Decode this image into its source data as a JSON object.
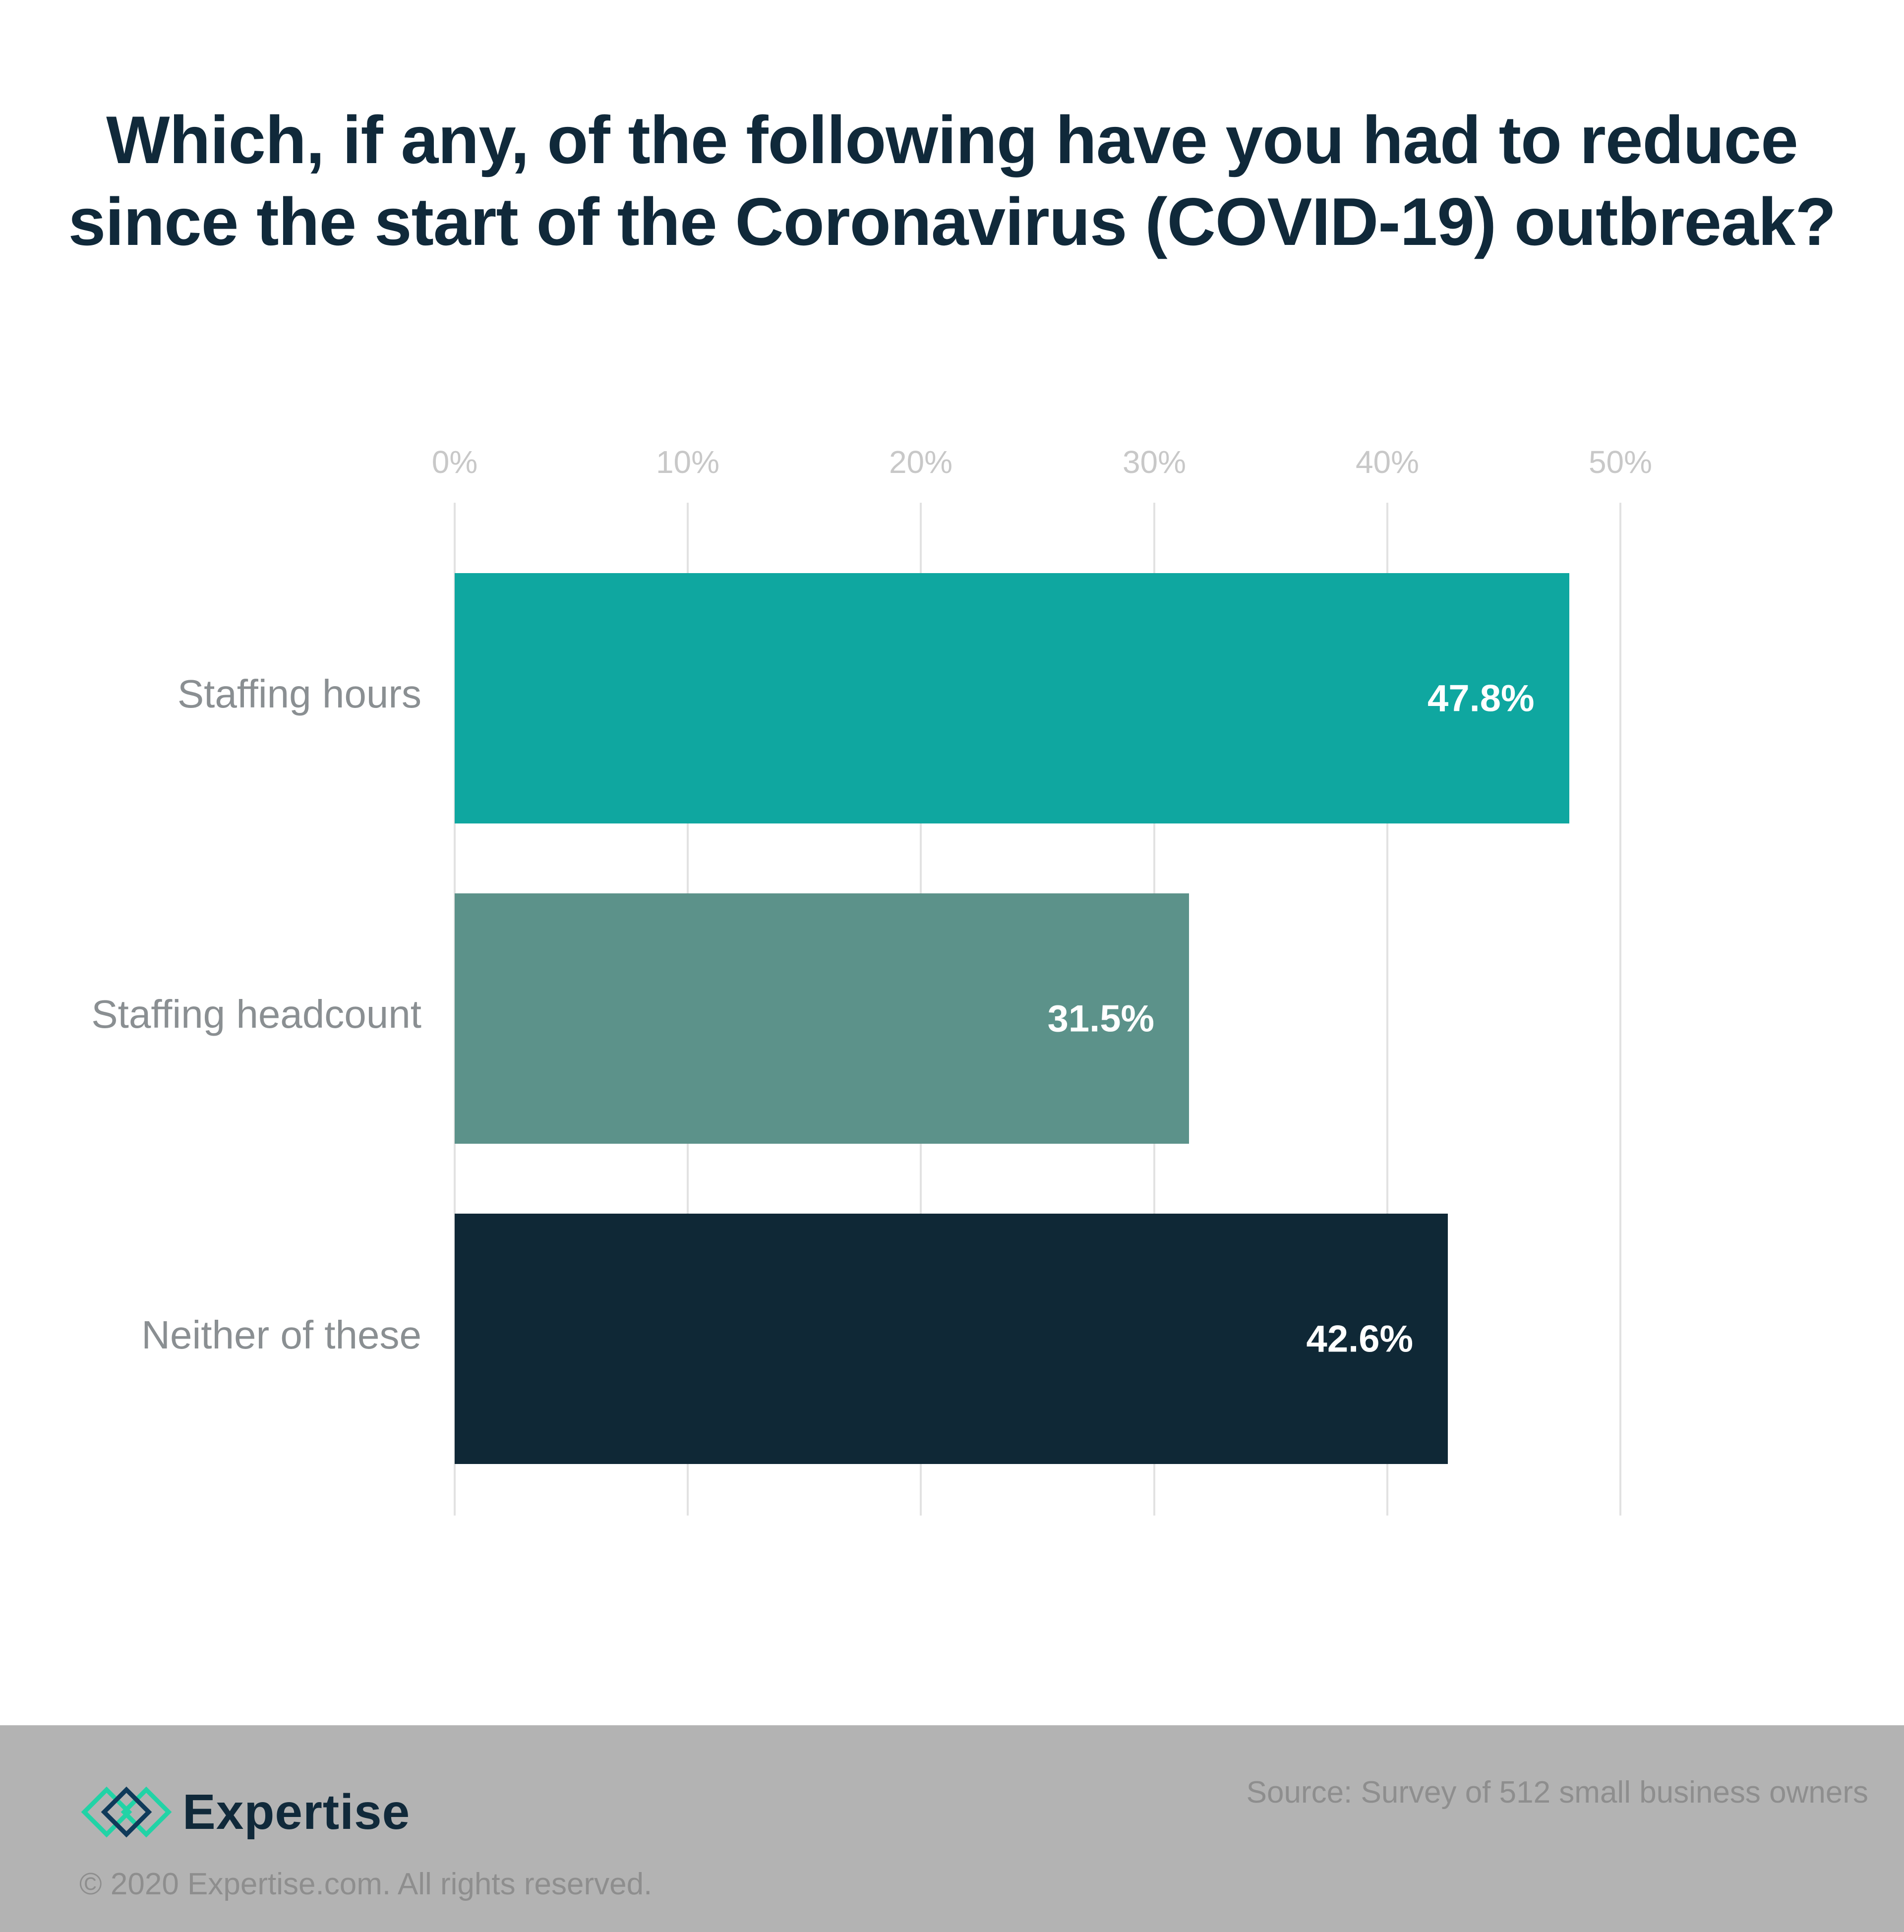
{
  "title": {
    "line1": "Which, if any, of the following have you had to reduce",
    "line2": "since the start of the Coronavirus (COVID-19) outbreak?"
  },
  "axis": {
    "ticks": [
      "0%",
      "10%",
      "20%",
      "30%",
      "40%",
      "50%"
    ]
  },
  "bars": [
    {
      "label": "Staffing hours",
      "value_label": "47.8%",
      "color": "#0fa7a0"
    },
    {
      "label": "Staffing headcount",
      "value_label": "31.5%",
      "color": "#5c928a"
    },
    {
      "label": "Neither of these",
      "value_label": "42.6%",
      "color": "#0f2836"
    }
  ],
  "footer": {
    "brand": "Expertise",
    "copyright": "© 2020 Expertise.com. All rights reserved.",
    "source": "Source: Survey of 512 small business owners",
    "background": "#b3b3b3",
    "logo_colors": {
      "light": "#22d3a6",
      "dark": "#0f3a5a"
    }
  },
  "chart_data": {
    "type": "bar",
    "orientation": "horizontal",
    "title": "Which, if any, of the following have you had to reduce since the start of the Coronavirus (COVID-19) outbreak?",
    "categories": [
      "Staffing hours",
      "Staffing headcount",
      "Neither of these"
    ],
    "values": [
      47.8,
      31.5,
      42.6
    ],
    "value_labels": [
      "47.8%",
      "31.5%",
      "42.6%"
    ],
    "colors": [
      "#0fa7a0",
      "#5c928a",
      "#0f2836"
    ],
    "xlabel": "",
    "ylabel": "",
    "xlim": [
      0,
      50
    ],
    "xticks": [
      "0%",
      "10%",
      "20%",
      "30%",
      "40%",
      "50%"
    ],
    "xaxis_position": "top",
    "grid": true,
    "legend": null,
    "source": "Source: Survey of 512 small business owners"
  }
}
